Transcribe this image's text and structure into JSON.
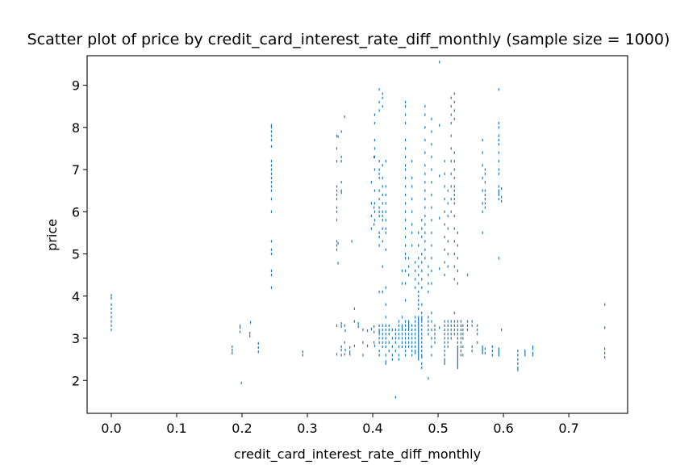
{
  "chart_data": {
    "type": "scatter",
    "title": "Scatter plot of price by credit_card_interest_rate_diff_monthly (sample size = 1000)",
    "xlabel": "credit_card_interest_rate_diff_monthly",
    "ylabel": "price",
    "xlim": [
      -0.037,
      0.79
    ],
    "ylim": [
      1.22,
      9.7
    ],
    "xticks": [
      0.0,
      0.1,
      0.2,
      0.3,
      0.4,
      0.5,
      0.6,
      0.7
    ],
    "xtick_labels": [
      "0.0",
      "0.1",
      "0.2",
      "0.3",
      "0.4",
      "0.5",
      "0.6",
      "0.7"
    ],
    "yticks": [
      2,
      3,
      4,
      5,
      6,
      7,
      8,
      9
    ],
    "ytick_labels": [
      "2",
      "3",
      "4",
      "5",
      "6",
      "7",
      "8",
      "9"
    ],
    "grid": false,
    "marker_color": "#1f77b4",
    "series": [
      {
        "x": [
          0.0,
          0.0,
          0.0,
          0.0,
          0.0,
          0.0,
          0.0,
          0.0,
          0.0,
          0.185,
          0.185,
          0.185,
          0.197,
          0.197,
          0.197,
          0.199,
          0.212,
          0.212,
          0.213,
          0.225,
          0.225,
          0.225,
          0.245,
          0.245,
          0.245,
          0.245,
          0.245,
          0.245,
          0.245,
          0.245,
          0.245,
          0.245,
          0.245,
          0.245,
          0.245,
          0.245,
          0.245,
          0.245,
          0.245,
          0.245,
          0.245,
          0.245,
          0.245,
          0.245,
          0.293,
          0.293,
          0.345,
          0.345,
          0.345,
          0.345,
          0.345,
          0.345,
          0.345,
          0.345,
          0.345,
          0.345,
          0.345,
          0.345,
          0.345,
          0.345,
          0.345,
          0.347,
          0.347,
          0.347,
          0.352,
          0.352,
          0.352,
          0.352,
          0.352,
          0.352,
          0.352,
          0.352,
          0.352,
          0.352,
          0.352,
          0.357,
          0.357,
          0.357,
          0.357,
          0.358,
          0.358,
          0.365,
          0.365,
          0.365,
          0.368,
          0.372,
          0.372,
          0.372,
          0.378,
          0.378,
          0.385,
          0.385,
          0.385,
          0.392,
          0.392,
          0.398,
          0.398,
          0.398,
          0.398,
          0.398,
          0.402,
          0.402,
          0.402,
          0.402,
          0.402,
          0.402,
          0.403,
          0.403,
          0.403,
          0.403,
          0.403,
          0.403,
          0.403,
          0.403,
          0.403,
          0.403,
          0.403,
          0.41,
          0.41,
          0.41,
          0.41,
          0.41,
          0.41,
          0.41,
          0.41,
          0.41,
          0.41,
          0.41,
          0.41,
          0.41,
          0.41,
          0.41,
          0.41,
          0.41,
          0.41,
          0.41,
          0.41,
          0.41,
          0.41,
          0.41,
          0.41,
          0.415,
          0.415,
          0.415,
          0.415,
          0.415,
          0.415,
          0.415,
          0.415,
          0.415,
          0.415,
          0.415,
          0.415,
          0.415,
          0.415,
          0.415,
          0.415,
          0.415,
          0.415,
          0.415,
          0.415,
          0.415,
          0.42,
          0.42,
          0.42,
          0.42,
          0.42,
          0.42,
          0.42,
          0.42,
          0.42,
          0.42,
          0.42,
          0.42,
          0.42,
          0.42,
          0.42,
          0.42,
          0.42,
          0.42,
          0.42,
          0.42,
          0.42,
          0.425,
          0.425,
          0.425,
          0.425,
          0.425,
          0.43,
          0.43,
          0.43,
          0.43,
          0.43,
          0.435,
          0.435,
          0.435,
          0.435,
          0.435,
          0.435,
          0.44,
          0.44,
          0.44,
          0.44,
          0.44,
          0.44,
          0.44,
          0.44,
          0.445,
          0.445,
          0.445,
          0.445,
          0.445,
          0.445,
          0.445,
          0.445,
          0.445,
          0.445,
          0.45,
          0.45,
          0.45,
          0.45,
          0.45,
          0.45,
          0.45,
          0.45,
          0.45,
          0.45,
          0.45,
          0.45,
          0.45,
          0.45,
          0.45,
          0.45,
          0.45,
          0.45,
          0.45,
          0.45,
          0.45,
          0.45,
          0.45,
          0.45,
          0.45,
          0.45,
          0.45,
          0.45,
          0.45,
          0.45,
          0.45,
          0.45,
          0.455,
          0.455,
          0.455,
          0.455,
          0.455,
          0.455,
          0.455,
          0.455,
          0.455,
          0.455,
          0.455,
          0.455,
          0.46,
          0.46,
          0.46,
          0.46,
          0.46,
          0.46,
          0.46,
          0.46,
          0.46,
          0.46,
          0.46,
          0.46,
          0.46,
          0.46,
          0.46,
          0.46,
          0.465,
          0.465,
          0.465,
          0.465,
          0.465,
          0.465,
          0.465,
          0.465,
          0.465,
          0.465,
          0.465,
          0.465,
          0.465,
          0.465,
          0.47,
          0.47,
          0.47,
          0.47,
          0.47,
          0.47,
          0.47,
          0.47,
          0.47,
          0.47,
          0.47,
          0.47,
          0.47,
          0.47,
          0.47,
          0.47,
          0.47,
          0.47,
          0.47,
          0.47,
          0.47,
          0.47,
          0.47,
          0.47,
          0.47,
          0.47,
          0.47,
          0.47,
          0.47,
          0.47,
          0.47,
          0.47,
          0.475,
          0.475,
          0.475,
          0.475,
          0.475,
          0.475,
          0.475,
          0.475,
          0.475,
          0.475,
          0.475,
          0.475,
          0.475,
          0.475,
          0.475,
          0.475,
          0.475,
          0.475,
          0.475,
          0.475,
          0.475,
          0.475,
          0.475,
          0.475,
          0.48,
          0.48,
          0.48,
          0.48,
          0.48,
          0.48,
          0.48,
          0.48,
          0.48,
          0.48,
          0.48,
          0.48,
          0.48,
          0.48,
          0.48,
          0.48,
          0.48,
          0.485,
          0.485,
          0.485,
          0.485,
          0.485,
          0.485,
          0.485,
          0.485,
          0.485,
          0.485,
          0.49,
          0.49,
          0.49,
          0.49,
          0.49,
          0.49,
          0.49,
          0.49,
          0.49,
          0.49,
          0.49,
          0.49,
          0.49,
          0.49,
          0.49,
          0.49,
          0.49,
          0.49,
          0.49,
          0.49,
          0.495,
          0.495,
          0.495,
          0.495,
          0.495,
          0.502,
          0.502,
          0.502,
          0.502,
          0.502,
          0.502,
          0.51,
          0.51,
          0.51,
          0.51,
          0.51,
          0.51,
          0.51,
          0.51,
          0.51,
          0.51,
          0.51,
          0.51,
          0.51,
          0.51,
          0.51,
          0.51,
          0.51,
          0.51,
          0.51,
          0.51,
          0.51,
          0.51,
          0.515,
          0.515,
          0.515,
          0.515,
          0.515,
          0.515,
          0.515,
          0.515,
          0.515,
          0.515,
          0.515,
          0.515,
          0.515,
          0.515,
          0.52,
          0.52,
          0.52,
          0.52,
          0.52,
          0.52,
          0.52,
          0.52,
          0.52,
          0.52,
          0.52,
          0.52,
          0.52,
          0.52,
          0.52,
          0.52,
          0.525,
          0.525,
          0.525,
          0.525,
          0.525,
          0.525,
          0.525,
          0.525,
          0.525,
          0.525,
          0.525,
          0.525,
          0.525,
          0.525,
          0.525,
          0.525,
          0.525,
          0.525,
          0.525,
          0.525,
          0.525,
          0.525,
          0.525,
          0.525,
          0.53,
          0.53,
          0.53,
          0.53,
          0.53,
          0.53,
          0.53,
          0.53,
          0.53,
          0.53,
          0.53,
          0.53,
          0.53,
          0.53,
          0.53,
          0.53,
          0.53,
          0.53,
          0.53,
          0.53,
          0.53,
          0.53,
          0.535,
          0.535,
          0.535,
          0.535,
          0.535,
          0.535,
          0.535,
          0.535,
          0.535,
          0.538,
          0.538,
          0.538,
          0.538,
          0.538,
          0.538,
          0.545,
          0.545,
          0.545,
          0.545,
          0.552,
          0.552,
          0.552,
          0.552,
          0.56,
          0.56,
          0.56,
          0.56,
          0.568,
          0.568,
          0.568,
          0.568,
          0.568,
          0.568,
          0.568,
          0.568,
          0.568,
          0.568,
          0.568,
          0.568,
          0.572,
          0.572,
          0.572,
          0.572,
          0.572,
          0.572,
          0.572,
          0.572,
          0.572,
          0.572,
          0.583,
          0.583,
          0.583,
          0.593,
          0.593,
          0.593,
          0.593,
          0.593,
          0.593,
          0.593,
          0.593,
          0.593,
          0.593,
          0.593,
          0.593,
          0.593,
          0.593,
          0.593,
          0.593,
          0.593,
          0.593,
          0.593,
          0.593,
          0.597,
          0.597,
          0.597,
          0.597,
          0.622,
          0.622,
          0.622,
          0.622,
          0.622,
          0.622,
          0.633,
          0.633,
          0.633,
          0.645,
          0.645,
          0.645,
          0.645,
          0.755,
          0.755,
          0.755,
          0.755,
          0.755
        ],
        "y": [
          3.2,
          3.3,
          3.4,
          3.5,
          3.6,
          3.7,
          3.8,
          3.95,
          4.02,
          2.65,
          2.72,
          2.8,
          3.15,
          3.25,
          3.3,
          1.94,
          3.05,
          3.12,
          3.38,
          2.68,
          2.78,
          2.88,
          4.2,
          4.5,
          4.6,
          5.0,
          5.3,
          6.0,
          6.3,
          6.5,
          6.6,
          6.7,
          6.8,
          6.9,
          7.0,
          7.1,
          7.2,
          7.55,
          7.7,
          7.8,
          7.9,
          8.0,
          8.05,
          5.1,
          2.6,
          2.68,
          5.1,
          5.2,
          5.3,
          5.8,
          6.0,
          6.1,
          6.3,
          6.4,
          6.5,
          6.6,
          7.2,
          7.5,
          7.8,
          3.3,
          2.62,
          5.25,
          7.78,
          4.78,
          7.3,
          7.9,
          3.28,
          3.35,
          2.72,
          2.8,
          2.6,
          6.45,
          6.5,
          7.2,
          6.7,
          8.25,
          2.9,
          2.62,
          3.3,
          3.18,
          2.72,
          2.78,
          2.68,
          2.62,
          5.3,
          3.4,
          3.7,
          2.82,
          3.28,
          3.35,
          2.9,
          2.6,
          3.2,
          2.82,
          3.18,
          5.6,
          5.9,
          6.2,
          6.7,
          3.22,
          7.3,
          6.1,
          5.7,
          3.28,
          3.15,
          2.9,
          8.3,
          8.1,
          7.7,
          7.5,
          7.3,
          7.0,
          6.5,
          6.2,
          6.0,
          5.8,
          2.82,
          6.8,
          7.0,
          7.2,
          6.9,
          6.5,
          6.3,
          6.1,
          6.0,
          5.9,
          5.5,
          5.2,
          4.1,
          3.3,
          3.2,
          3.15,
          3.1,
          3.0,
          2.9,
          2.7,
          2.6,
          5.4,
          8.4,
          8.6,
          8.9,
          8.8,
          8.7,
          8.5,
          7.1,
          6.8,
          6.6,
          6.4,
          6.2,
          6.0,
          5.9,
          5.8,
          5.6,
          5.3,
          4.7,
          4.1,
          3.3,
          3.2,
          3.1,
          3.0,
          2.9,
          2.8,
          7.2,
          6.6,
          6.4,
          6.2,
          6.0,
          5.8,
          5.6,
          5.5,
          5.1,
          4.2,
          3.8,
          3.5,
          3.3,
          3.2,
          3.1,
          3.0,
          2.9,
          2.8,
          2.6,
          2.45,
          2.4,
          3.3,
          3.2,
          3.1,
          2.9,
          2.7,
          3.2,
          3.0,
          2.8,
          2.6,
          2.5,
          3.2,
          3.1,
          3.0,
          2.9,
          2.7,
          1.6,
          3.4,
          3.3,
          3.2,
          3.1,
          3.0,
          2.8,
          2.6,
          2.5,
          3.3,
          3.25,
          3.2,
          3.1,
          3.0,
          2.9,
          4.6,
          4.3,
          3.5,
          2.8,
          8.6,
          8.5,
          8.3,
          8.1,
          7.7,
          7.5,
          7.3,
          7.1,
          7.0,
          6.8,
          6.6,
          6.4,
          6.2,
          6.0,
          5.8,
          5.6,
          5.4,
          5.2,
          5.0,
          4.9,
          4.6,
          4.3,
          3.9,
          3.4,
          3.3,
          3.2,
          3.1,
          3.0,
          2.9,
          2.8,
          2.7,
          2.6,
          3.3,
          3.2,
          3.1,
          3.0,
          2.9,
          2.8,
          4.9,
          4.7,
          4.5,
          3.4,
          3.35,
          3.25,
          7.2,
          6.8,
          6.6,
          6.3,
          6.0,
          5.7,
          5.5,
          5.2,
          3.3,
          3.2,
          3.1,
          3.0,
          2.9,
          2.8,
          2.7,
          2.6,
          4.8,
          4.6,
          4.4,
          4.2,
          3.5,
          3.4,
          3.3,
          3.2,
          3.1,
          3.0,
          2.9,
          2.8,
          2.7,
          2.65,
          5.5,
          5.2,
          4.9,
          4.7,
          4.5,
          4.3,
          4.1,
          3.9,
          3.7,
          3.5,
          3.45,
          3.4,
          3.35,
          3.3,
          3.25,
          3.2,
          3.15,
          3.1,
          3.05,
          3.0,
          2.95,
          2.9,
          2.85,
          2.8,
          2.75,
          2.7,
          2.65,
          2.6,
          2.55,
          2.5,
          4.0,
          3.8,
          5.8,
          5.6,
          5.4,
          5.0,
          4.8,
          4.6,
          4.4,
          4.2,
          3.8,
          3.6,
          3.5,
          3.45,
          3.4,
          3.3,
          3.2,
          3.1,
          3.0,
          2.9,
          2.8,
          2.7,
          2.6,
          2.55,
          2.4,
          2.3,
          8.5,
          8.3,
          8.0,
          7.7,
          7.4,
          7.1,
          6.9,
          6.7,
          6.5,
          6.3,
          6.1,
          5.9,
          5.7,
          5.5,
          5.3,
          5.1,
          4.9,
          4.7,
          4.5,
          4.3,
          4.1,
          3.5,
          3.4,
          3.3,
          3.2,
          3.1,
          2.05,
          8.2,
          7.9,
          7.6,
          7.3,
          7.0,
          6.7,
          6.4,
          6.1,
          5.8,
          5.5,
          5.2,
          4.9,
          4.6,
          4.3,
          3.6,
          3.4,
          3.2,
          3.0,
          2.8,
          2.6,
          3.3,
          3.2,
          3.1,
          3.0,
          2.9,
          9.55,
          8.05,
          6.85,
          5.85,
          4.65,
          3.25,
          7.2,
          6.9,
          6.6,
          6.3,
          6.0,
          5.7,
          5.4,
          5.1,
          4.8,
          4.5,
          3.4,
          3.3,
          3.2,
          3.1,
          3.0,
          2.9,
          2.8,
          2.7,
          2.6,
          2.5,
          2.45,
          2.4,
          6.5,
          6.2,
          5.9,
          5.6,
          5.3,
          5.0,
          4.7,
          3.4,
          3.3,
          3.2,
          3.1,
          3.0,
          2.9,
          2.8,
          8.7,
          8.5,
          8.3,
          8.1,
          7.8,
          7.5,
          7.2,
          6.9,
          6.6,
          6.3,
          6.0,
          3.4,
          3.3,
          3.2,
          3.1,
          3.0,
          8.8,
          8.6,
          8.4,
          8.2,
          7.4,
          7.2,
          7.0,
          6.8,
          6.6,
          6.5,
          6.4,
          6.3,
          6.2,
          5.9,
          5.6,
          5.3,
          5.0,
          4.7,
          4.4,
          3.6,
          3.4,
          3.3,
          3.2,
          3.1,
          5.5,
          5.2,
          4.9,
          4.6,
          4.3,
          3.4,
          3.3,
          3.2,
          3.1,
          3.0,
          2.9,
          2.8,
          2.7,
          2.6,
          2.5,
          2.4,
          2.35,
          2.3,
          2.45,
          2.55,
          2.65,
          2.75,
          3.4,
          3.3,
          3.2,
          3.1,
          3.0,
          2.9,
          2.8,
          2.7,
          2.6,
          3.3,
          3.2,
          3.1,
          3.0,
          2.8,
          2.6,
          4.5,
          3.4,
          3.3,
          3.2,
          3.4,
          3.3,
          2.8,
          2.7,
          3.3,
          3.2,
          3.1,
          2.9,
          7.7,
          7.4,
          7.1,
          6.8,
          6.5,
          6.2,
          6.0,
          5.5,
          2.8,
          2.75,
          2.7,
          2.65,
          7.0,
          6.9,
          6.7,
          6.5,
          6.4,
          6.3,
          6.2,
          6.1,
          2.75,
          2.65,
          2.8,
          2.7,
          2.6,
          8.9,
          8.1,
          8.0,
          7.8,
          7.7,
          7.6,
          7.4,
          7.2,
          7.0,
          6.9,
          6.6,
          6.5,
          6.45,
          6.4,
          6.3,
          4.9,
          2.75,
          2.7,
          2.65,
          2.6,
          3.2,
          6.35,
          6.25,
          6.55,
          2.25,
          2.3,
          2.4,
          2.5,
          2.6,
          2.7,
          2.6,
          2.65,
          2.7,
          2.6,
          2.65,
          2.75,
          2.8,
          2.55,
          2.65,
          2.75,
          3.25,
          3.8
        ]
      }
    ]
  }
}
